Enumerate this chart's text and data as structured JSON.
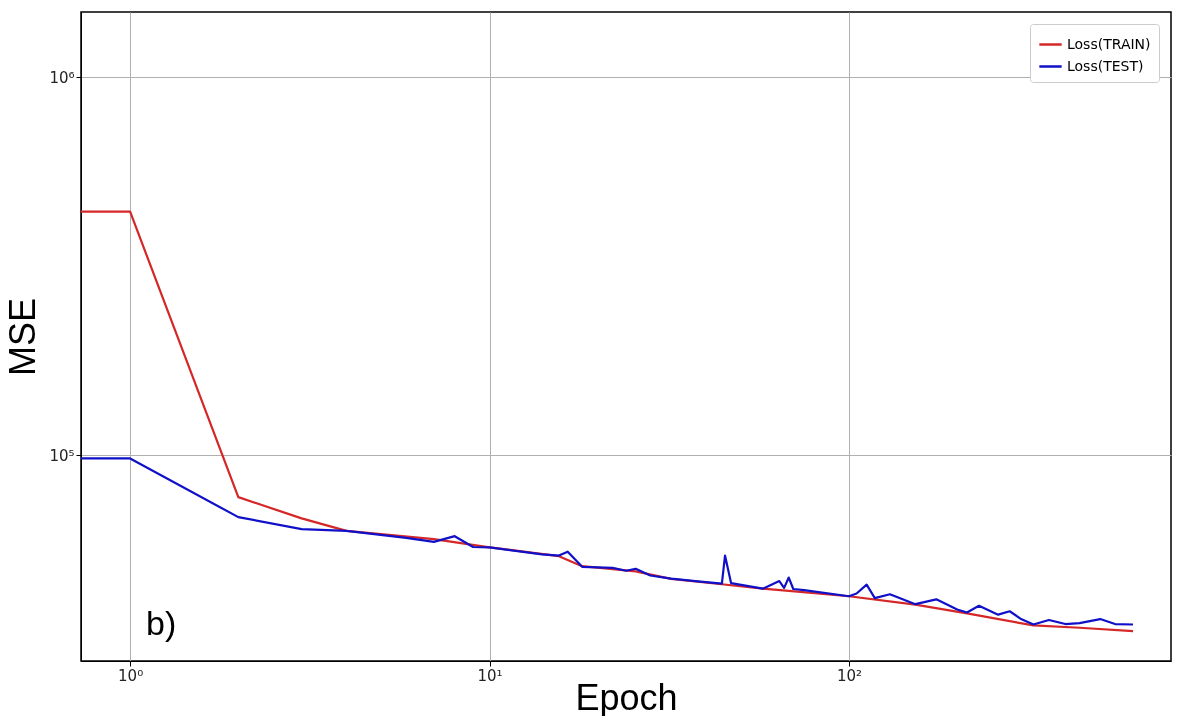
{
  "chart_data": {
    "type": "line",
    "xlabel": "Epoch",
    "ylabel": "MSE",
    "log": "xy",
    "grid": true,
    "legend": "top right",
    "line_style": "solid",
    "marker": "none",
    "xlim": [
      0.73,
      787
    ],
    "ylim": [
      28500,
      1490000
    ],
    "xticks": [
      {
        "value": 1,
        "label": "10⁰"
      },
      {
        "value": 10,
        "label": "10¹"
      },
      {
        "value": 100,
        "label": "10²"
      }
    ],
    "yticks": [
      {
        "value": 100000,
        "label": "10⁵"
      },
      {
        "value": 1000000,
        "label": "10⁶"
      }
    ],
    "annotations": [
      "b)"
    ],
    "series": [
      {
        "name": "Loss(TRAIN)",
        "color": "#d62728",
        "x": [
          0.73,
          1,
          2,
          3,
          4,
          7,
          10,
          15.6,
          18.1,
          25.5,
          32,
          44.3,
          57.6,
          68,
          100,
          153,
          213,
          326,
          438,
          617
        ],
        "values": [
          441000,
          441000,
          77400,
          68000,
          63000,
          59900,
          57000,
          54000,
          50800,
          49200,
          47000,
          45500,
          44300,
          43700,
          42300,
          40200,
          38100,
          35400,
          34900,
          34200
        ]
      },
      {
        "name": "Loss(TEST)",
        "color": "#1010c8",
        "x": [
          0.73,
          1,
          2,
          3,
          4,
          5.86,
          7,
          8,
          9,
          10,
          14,
          15.6,
          16.5,
          18.1,
          22,
          24,
          25.5,
          28,
          32,
          38,
          44.3,
          45.2,
          47,
          57.6,
          64,
          66,
          68,
          70,
          75,
          100,
          105,
          112,
          118,
          130,
          153,
          175,
          200,
          213,
          230,
          260,
          280,
          300,
          326,
          360,
          400,
          438,
          500,
          550,
          617
        ],
        "values": [
          98000,
          98000,
          68500,
          63700,
          63000,
          60400,
          58900,
          61000,
          57100,
          57000,
          54600,
          54200,
          55500,
          50600,
          50300,
          49400,
          50000,
          48000,
          47100,
          46300,
          45700,
          54200,
          45800,
          44300,
          46400,
          44500,
          47400,
          44200,
          43900,
          42300,
          43000,
          45400,
          41800,
          42800,
          40300,
          41500,
          39000,
          38300,
          39900,
          37800,
          38600,
          36900,
          35600,
          36600,
          35700,
          35900,
          36800,
          35700,
          35600
        ]
      }
    ]
  }
}
